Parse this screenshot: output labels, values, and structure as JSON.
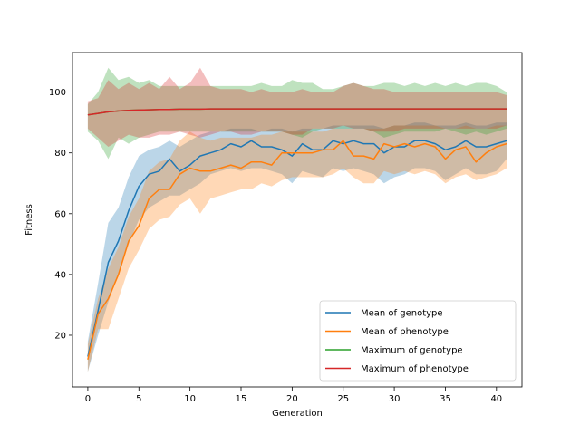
{
  "chart_data": {
    "type": "line",
    "title": "",
    "xlabel": "Generation",
    "ylabel": "Fitness",
    "xlim": [
      -1.5,
      42.5
    ],
    "ylim": [
      3,
      113
    ],
    "xticks": [
      0,
      5,
      10,
      15,
      20,
      25,
      30,
      35,
      40
    ],
    "yticks": [
      20,
      40,
      60,
      80,
      100
    ],
    "grid": false,
    "legend_position": "lower-right",
    "x": [
      0,
      1,
      2,
      3,
      4,
      5,
      6,
      7,
      8,
      9,
      10,
      11,
      12,
      13,
      14,
      15,
      16,
      17,
      18,
      19,
      20,
      21,
      22,
      23,
      24,
      25,
      26,
      27,
      28,
      29,
      30,
      31,
      32,
      33,
      34,
      35,
      36,
      37,
      38,
      39,
      40,
      41
    ],
    "series": [
      {
        "name": "Mean of genotype",
        "color": "#1f77b4",
        "values": [
          13,
          28,
          44,
          51,
          61,
          69,
          73,
          74,
          78,
          74,
          76,
          79,
          80,
          81,
          83,
          82,
          84,
          82,
          82,
          81,
          79,
          83,
          81,
          81,
          84,
          83,
          84,
          83,
          83,
          80,
          82,
          82,
          84,
          84,
          83,
          81,
          82,
          84,
          82,
          82,
          83,
          84
        ],
        "lower": [
          8,
          20,
          31,
          40,
          50,
          58,
          62,
          64,
          66,
          66,
          68,
          70,
          73,
          74,
          75,
          74,
          75,
          75,
          74,
          73,
          70,
          74,
          73,
          72,
          75,
          74,
          75,
          74,
          73,
          70,
          72,
          73,
          75,
          75,
          74,
          71,
          73,
          75,
          73,
          73,
          74,
          78
        ],
        "upper": [
          18,
          37,
          57,
          62,
          72,
          79,
          81,
          82,
          84,
          82,
          84,
          86,
          87,
          87,
          88,
          88,
          88,
          87,
          88,
          88,
          87,
          88,
          88,
          88,
          89,
          89,
          89,
          89,
          89,
          88,
          89,
          89,
          90,
          90,
          89,
          89,
          89,
          90,
          89,
          89,
          90,
          90
        ]
      },
      {
        "name": "Mean of phenotype",
        "color": "#ff7f0e",
        "values": [
          12,
          27,
          32,
          40,
          51,
          56,
          65,
          68,
          68,
          73,
          75,
          74,
          74,
          75,
          76,
          75,
          77,
          77,
          76,
          80,
          80,
          80,
          80,
          81,
          81,
          84,
          79,
          79,
          78,
          83,
          82,
          83,
          82,
          83,
          82,
          78,
          81,
          82,
          77,
          80,
          82,
          83
        ],
        "lower": [
          8,
          22,
          22,
          32,
          42,
          48,
          55,
          58,
          59,
          63,
          65,
          60,
          65,
          66,
          67,
          68,
          68,
          70,
          69,
          71,
          72,
          72,
          72,
          72,
          73,
          75,
          72,
          70,
          70,
          74,
          73,
          74,
          73,
          74,
          73,
          70,
          72,
          73,
          71,
          72,
          73,
          75
        ],
        "upper": [
          17,
          32,
          42,
          49,
          59,
          65,
          74,
          77,
          78,
          84,
          87,
          85,
          84,
          85,
          85,
          85,
          85,
          86,
          86,
          87,
          87,
          87,
          87,
          87,
          88,
          88,
          88,
          88,
          88,
          88,
          89,
          89,
          89,
          89,
          89,
          88,
          88,
          89,
          88,
          88,
          89,
          89
        ]
      },
      {
        "name": "Maximum of genotype",
        "color": "#2ca02c",
        "values": [
          92.5,
          93,
          93.5,
          93.8,
          94,
          94.1,
          94.2,
          94.3,
          94.3,
          94.4,
          94.4,
          94.4,
          94.5,
          94.5,
          94.5,
          94.5,
          94.5,
          94.5,
          94.5,
          94.5,
          94.5,
          94.5,
          94.5,
          94.5,
          94.5,
          94.5,
          94.5,
          94.5,
          94.5,
          94.5,
          94.5,
          94.5,
          94.5,
          94.5,
          94.5,
          94.5,
          94.5,
          94.5,
          94.5,
          94.5,
          94.5,
          94.5
        ],
        "lower": [
          87,
          84,
          78,
          85,
          83,
          85,
          86,
          87,
          87,
          87,
          87,
          87,
          87,
          87,
          87,
          87,
          87,
          87,
          87,
          87,
          86,
          85,
          87,
          88,
          88,
          88,
          88,
          88,
          87,
          85,
          86,
          87,
          87,
          87,
          87,
          88,
          87,
          86,
          87,
          86,
          87,
          88
        ],
        "upper": [
          96,
          100,
          108,
          104,
          105,
          103,
          104,
          102,
          102,
          102,
          102,
          102,
          102,
          102,
          102,
          102,
          102,
          103,
          102,
          102,
          104,
          103,
          103,
          101,
          101,
          102,
          103,
          102,
          102,
          103,
          103,
          102,
          103,
          102,
          103,
          102,
          103,
          102,
          103,
          103,
          102,
          100
        ]
      },
      {
        "name": "Maximum of phenotype",
        "color": "#d62728",
        "values": [
          92.5,
          93,
          93.5,
          93.8,
          94,
          94.1,
          94.2,
          94.3,
          94.3,
          94.4,
          94.4,
          94.4,
          94.5,
          94.5,
          94.5,
          94.5,
          94.5,
          94.5,
          94.5,
          94.5,
          94.5,
          94.5,
          94.5,
          94.5,
          94.5,
          94.5,
          94.5,
          94.5,
          94.5,
          94.5,
          94.5,
          94.5,
          94.5,
          94.5,
          94.5,
          94.5,
          94.5,
          94.5,
          94.5,
          94.5,
          94.5,
          94.5
        ],
        "lower": [
          88,
          85,
          82,
          84,
          86,
          85,
          85,
          86,
          86,
          87,
          86,
          85,
          86,
          87,
          87,
          86,
          86,
          87,
          87,
          87,
          86,
          86,
          88,
          88,
          88,
          89,
          88,
          88,
          87,
          87,
          87,
          88,
          88,
          88,
          88,
          88,
          88,
          88,
          88,
          88,
          88,
          89
        ],
        "upper": [
          97,
          98,
          104,
          101,
          103,
          101,
          103,
          101,
          105,
          101,
          103,
          108,
          102,
          101,
          101,
          101,
          100,
          101,
          100,
          100,
          100,
          101,
          100,
          100,
          100,
          102,
          103,
          102,
          101,
          101,
          100,
          100,
          100,
          100,
          100,
          100,
          100,
          100,
          100,
          100,
          100,
          99
        ]
      }
    ]
  }
}
